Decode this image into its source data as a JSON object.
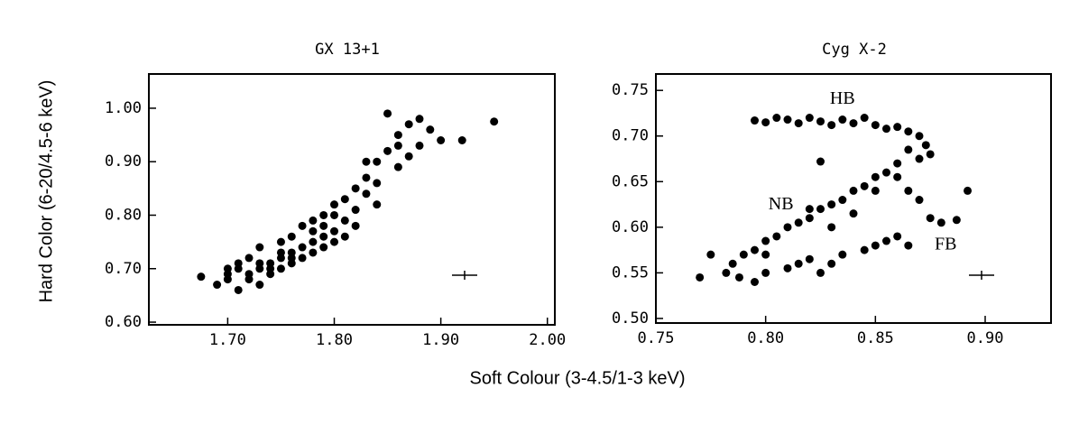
{
  "figure": {
    "ylabel": "Hard Color (6-20/4.5-6 keV)",
    "xlabel": "Soft Colour (3-4.5/1-3 keV)"
  },
  "chart_data": [
    {
      "type": "scatter",
      "title": "GX 13+1",
      "color": "#000000",
      "xlim": [
        1.626,
        2.007
      ],
      "ylim": [
        0.595,
        1.064
      ],
      "xticks": [
        {
          "value": 1.7,
          "label": "1.70"
        },
        {
          "value": 1.8,
          "label": "1.80"
        },
        {
          "value": 1.9,
          "label": "1.90"
        },
        {
          "value": 2.0,
          "label": "2.00"
        }
      ],
      "yticks": [
        {
          "value": 0.6,
          "label": "0.60"
        },
        {
          "value": 0.7,
          "label": "0.70"
        },
        {
          "value": 0.8,
          "label": "0.80"
        },
        {
          "value": 0.9,
          "label": "0.90"
        },
        {
          "value": 1.0,
          "label": "1.00"
        }
      ],
      "x": [
        1.675,
        1.69,
        1.7,
        1.7,
        1.71,
        1.71,
        1.72,
        1.72,
        1.73,
        1.73,
        1.73,
        1.74,
        1.74,
        1.75,
        1.75,
        1.75,
        1.76,
        1.76,
        1.76,
        1.77,
        1.77,
        1.78,
        1.78,
        1.78,
        1.79,
        1.79,
        1.79,
        1.8,
        1.8,
        1.8,
        1.81,
        1.81,
        1.82,
        1.82,
        1.83,
        1.83,
        1.84,
        1.84,
        1.85,
        1.85,
        1.86,
        1.86,
        1.87,
        1.87,
        1.88,
        1.88,
        1.89,
        1.9,
        1.92,
        1.95,
        1.7,
        1.72,
        1.74,
        1.76,
        1.78,
        1.8,
        1.82,
        1.84,
        1.86,
        1.71,
        1.73,
        1.75,
        1.77,
        1.79,
        1.81,
        1.83
      ],
      "values": [
        0.685,
        0.67,
        0.7,
        0.68,
        0.71,
        0.66,
        0.69,
        0.72,
        0.7,
        0.67,
        0.74,
        0.71,
        0.69,
        0.72,
        0.7,
        0.75,
        0.73,
        0.71,
        0.76,
        0.74,
        0.72,
        0.77,
        0.75,
        0.73,
        0.78,
        0.76,
        0.74,
        0.8,
        0.77,
        0.82,
        0.79,
        0.83,
        0.85,
        0.81,
        0.87,
        0.84,
        0.9,
        0.86,
        0.92,
        0.99,
        0.95,
        0.89,
        0.97,
        0.91,
        0.98,
        0.93,
        0.96,
        0.94,
        0.94,
        0.975,
        0.69,
        0.68,
        0.7,
        0.72,
        0.79,
        0.75,
        0.78,
        0.82,
        0.93,
        0.7,
        0.71,
        0.73,
        0.78,
        0.8,
        0.76,
        0.9
      ]
    },
    {
      "type": "scatter",
      "title": "Cyg X-2",
      "color": "#000000",
      "xlim": [
        0.75,
        0.93
      ],
      "ylim": [
        0.495,
        0.768
      ],
      "xticks": [
        0.75,
        {
          "value": 0.8,
          "label": "0.80"
        },
        0.85,
        {
          "value": 0.9,
          "label": "0.90"
        }
      ],
      "yticks": [
        {
          "value": 0.5,
          "label": "0.50"
        },
        0.55,
        {
          "value": 0.6,
          "label": "0.60"
        },
        0.65,
        {
          "value": 0.7,
          "label": "0.70"
        },
        0.75
      ],
      "annotations": [
        {
          "text": "HB",
          "x": 0.835,
          "y": 0.74
        },
        {
          "text": "NB",
          "x": 0.807,
          "y": 0.624
        },
        {
          "text": "FB",
          "x": 0.882,
          "y": 0.58
        }
      ],
      "x": [
        0.795,
        0.8,
        0.805,
        0.81,
        0.815,
        0.82,
        0.825,
        0.83,
        0.835,
        0.84,
        0.845,
        0.85,
        0.855,
        0.86,
        0.865,
        0.87,
        0.873,
        0.875,
        0.87,
        0.865,
        0.86,
        0.855,
        0.85,
        0.845,
        0.84,
        0.835,
        0.83,
        0.825,
        0.82,
        0.815,
        0.81,
        0.805,
        0.8,
        0.795,
        0.79,
        0.785,
        0.782,
        0.788,
        0.795,
        0.8,
        0.81,
        0.82,
        0.83,
        0.84,
        0.85,
        0.86,
        0.865,
        0.87,
        0.775,
        0.77,
        0.815,
        0.82,
        0.825,
        0.83,
        0.835,
        0.845,
        0.85,
        0.855,
        0.86,
        0.865,
        0.875,
        0.88,
        0.887,
        0.892,
        0.825,
        0.8
      ],
      "values": [
        0.717,
        0.715,
        0.72,
        0.718,
        0.714,
        0.72,
        0.716,
        0.712,
        0.718,
        0.714,
        0.72,
        0.712,
        0.708,
        0.71,
        0.705,
        0.7,
        0.69,
        0.68,
        0.675,
        0.685,
        0.67,
        0.66,
        0.655,
        0.645,
        0.64,
        0.63,
        0.625,
        0.62,
        0.61,
        0.605,
        0.6,
        0.59,
        0.585,
        0.575,
        0.57,
        0.56,
        0.55,
        0.545,
        0.54,
        0.55,
        0.555,
        0.62,
        0.6,
        0.615,
        0.64,
        0.655,
        0.64,
        0.63,
        0.57,
        0.545,
        0.56,
        0.565,
        0.55,
        0.56,
        0.57,
        0.575,
        0.58,
        0.585,
        0.59,
        0.58,
        0.61,
        0.605,
        0.608,
        0.64,
        0.672,
        0.57
      ]
    }
  ]
}
